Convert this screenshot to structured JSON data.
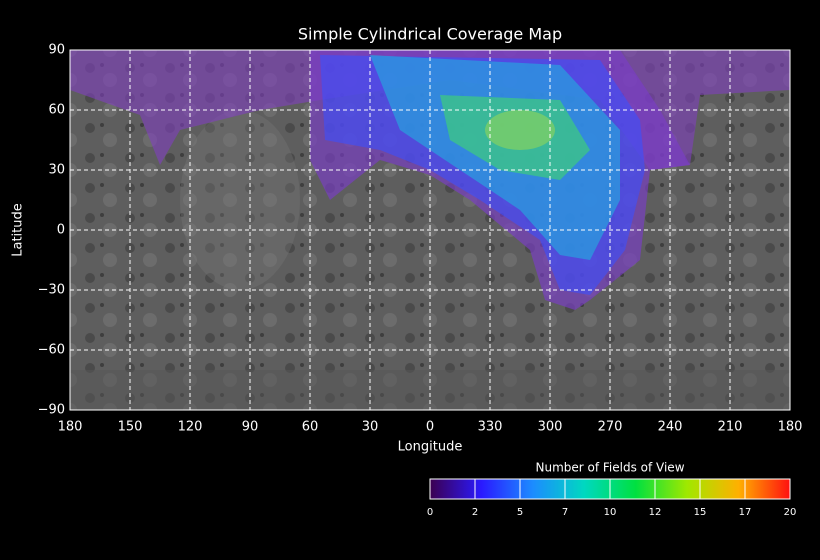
{
  "chart_data": {
    "type": "map",
    "title": "Simple Cylindrical Coverage Map",
    "xlabel": "Longitude",
    "ylabel": "Latitude",
    "x_labels": [
      "180",
      "150",
      "120",
      "90",
      "60",
      "30",
      "0",
      "330",
      "300",
      "270",
      "240",
      "210",
      "180"
    ],
    "ylim": [
      -90,
      90
    ],
    "yticks": [
      90,
      60,
      30,
      0,
      {
        "value": -30,
        "label": "−30"
      },
      {
        "value": -60,
        "label": "−60"
      },
      {
        "value": -90,
        "label": "−90"
      }
    ],
    "grid": true,
    "colorbar": {
      "title": "Number of Fields of View",
      "tick_labels": [
        "0",
        "2",
        "5",
        "7",
        "10",
        "12",
        "15",
        "17",
        "20"
      ],
      "colors": [
        "#3c0050",
        "#2a1aff",
        "#1c8cff",
        "#00d8c0",
        "#00e040",
        "#a0e800",
        "#ffb000",
        "#ff1010"
      ]
    }
  }
}
